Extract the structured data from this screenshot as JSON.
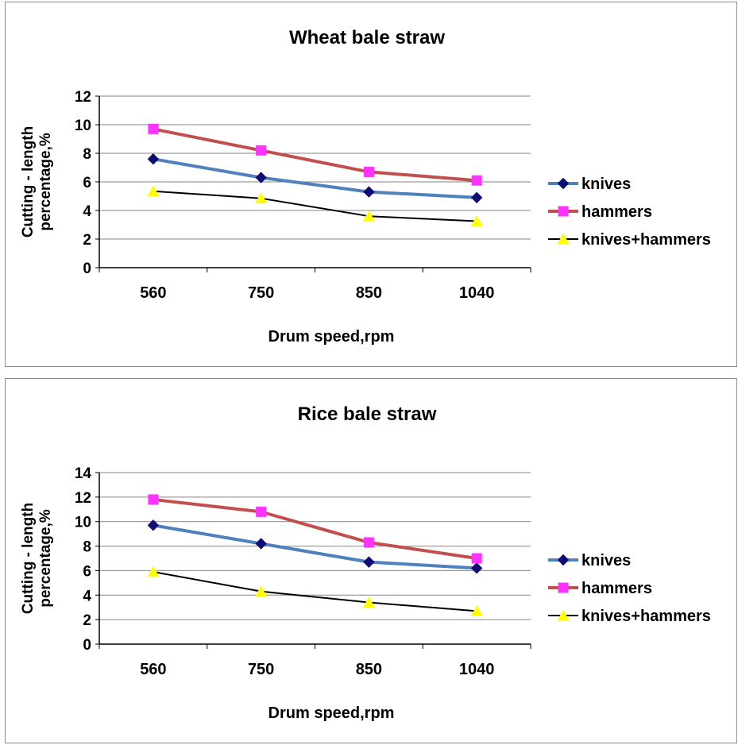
{
  "colors": {
    "knives": "#4f81bd",
    "hammers": "#c0504d",
    "knives_hammers": "#000000",
    "knives_marker": "#0d0d73",
    "hammers_marker": "#ff33ff",
    "knives_hammers_marker": "#ffff00",
    "grid": "#868686"
  },
  "chart_data": [
    {
      "type": "line",
      "title": "Wheat bale straw",
      "xlabel": "Drum speed,rpm",
      "ylabel": "Cutting - length percentage,%",
      "categories": [
        "560",
        "750",
        "850",
        "1040"
      ],
      "ylim": [
        0,
        12
      ],
      "yticks": [
        0,
        2,
        4,
        6,
        8,
        10,
        12
      ],
      "grid": true,
      "legend_position": "right",
      "series": [
        {
          "name": "knives",
          "marker": "diamond",
          "values": [
            7.6,
            6.3,
            5.3,
            4.9
          ]
        },
        {
          "name": "hammers",
          "marker": "square",
          "values": [
            9.7,
            8.2,
            6.7,
            6.1
          ]
        },
        {
          "name": "knives+hammers",
          "marker": "triangle",
          "values": [
            5.35,
            4.85,
            3.6,
            3.25
          ]
        }
      ]
    },
    {
      "type": "line",
      "title": "Rice bale straw",
      "xlabel": "Drum speed,rpm",
      "ylabel": "Cutting - length percentage,%",
      "categories": [
        "560",
        "750",
        "850",
        "1040"
      ],
      "ylim": [
        0,
        14
      ],
      "yticks": [
        0,
        2,
        4,
        6,
        8,
        10,
        12,
        14
      ],
      "grid": true,
      "legend_position": "right",
      "series": [
        {
          "name": "knives",
          "marker": "diamond",
          "values": [
            9.7,
            8.2,
            6.7,
            6.2
          ]
        },
        {
          "name": "hammers",
          "marker": "square",
          "values": [
            11.8,
            10.8,
            8.3,
            7.0
          ]
        },
        {
          "name": "knives+hammers",
          "marker": "triangle",
          "values": [
            5.9,
            4.3,
            3.4,
            2.7
          ]
        }
      ]
    }
  ]
}
